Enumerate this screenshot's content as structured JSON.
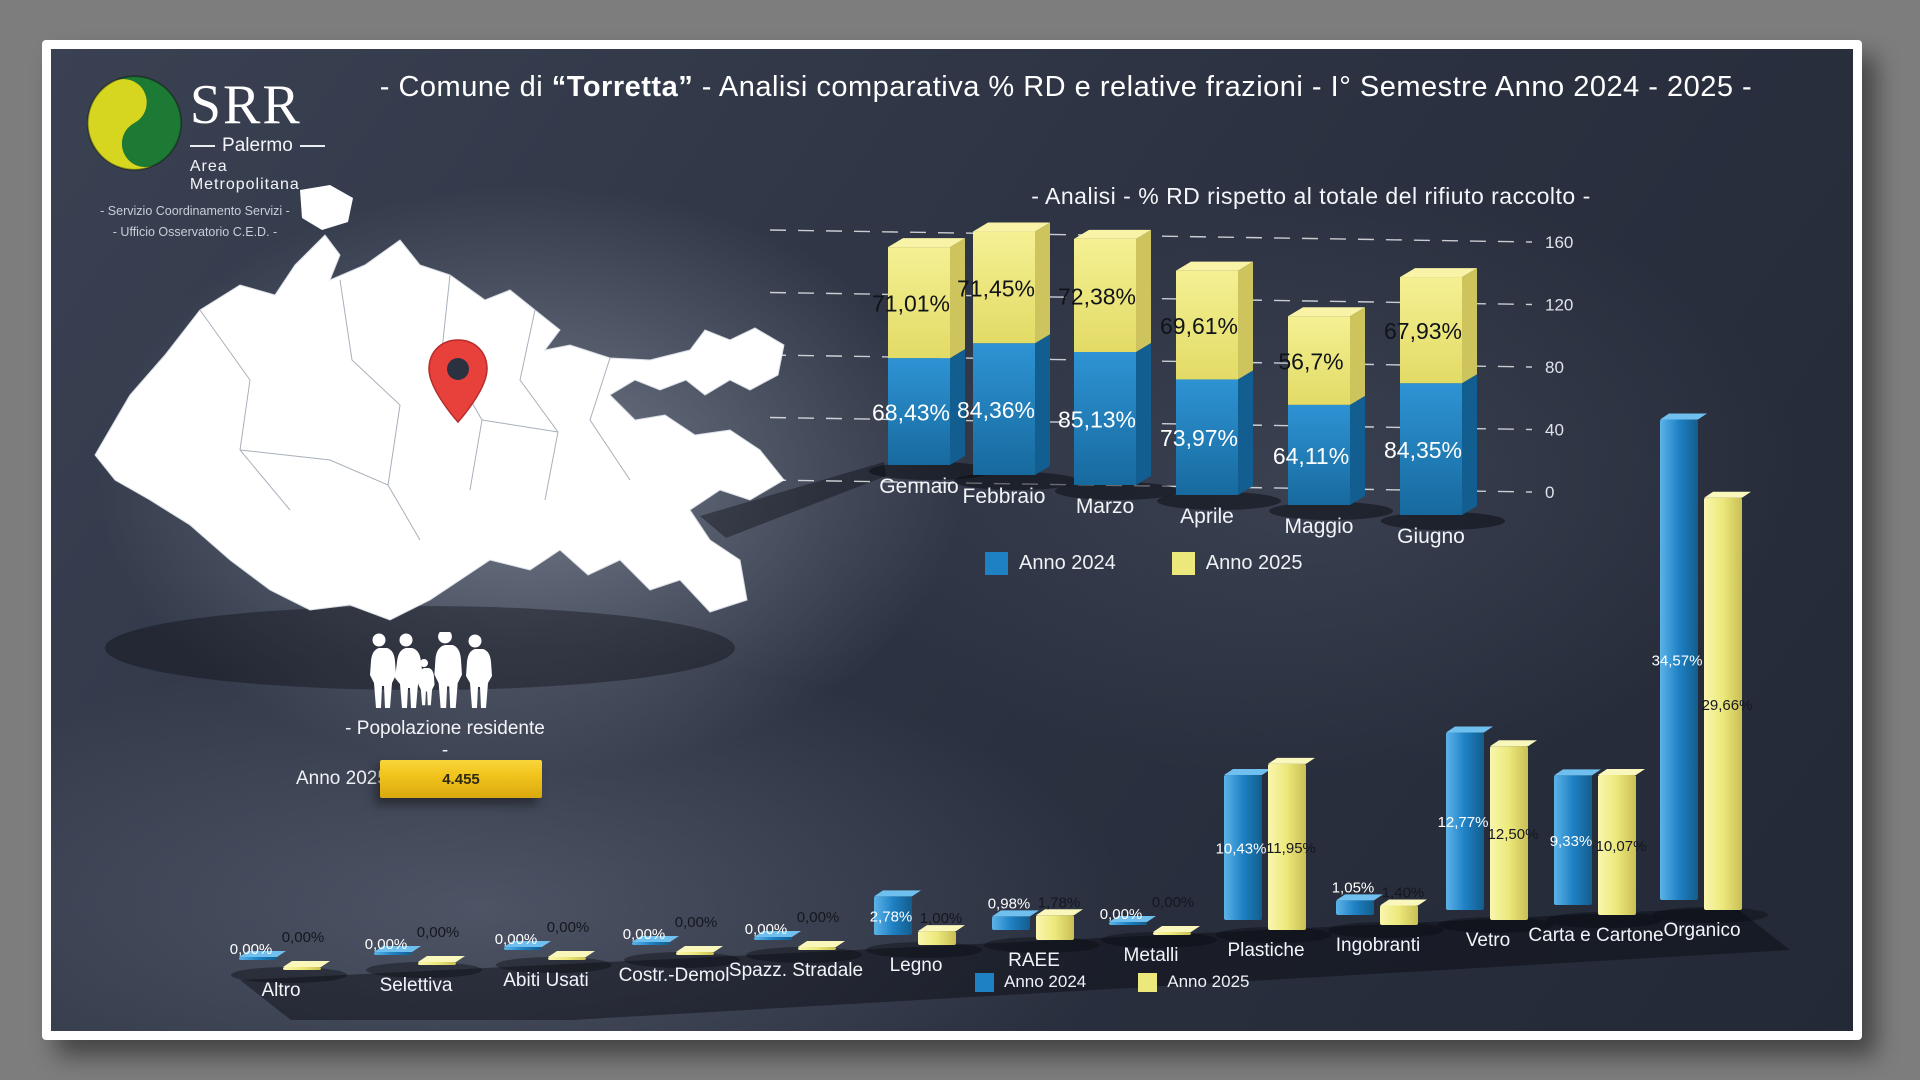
{
  "header": {
    "logo_text": "SRR",
    "logo_sub1": "Palermo",
    "logo_sub2": "Area Metropolitana",
    "dept_line1": "- Servizio Coordinamento Servizi -",
    "dept_line2": "- Ufficio Osservatorio C.E.D. -",
    "title_prefix": "- Comune di ",
    "title_bold": "“Torretta”",
    "title_suffix": " - Analisi comparativa % RD e relative frazioni - I° Semestre Anno 2024 - 2025 -"
  },
  "colors": {
    "anno2024_blue": "#1E81C4",
    "anno2025_yellow": "#ECE87B",
    "population_gold": "#F2C41D",
    "pin_red": "#E8413C",
    "panel_navy": "#2B3140",
    "frame_white": "#FFFFFF"
  },
  "population": {
    "caption": "- Popolazione residente -",
    "year_label": "Anno 2025",
    "value": "4.455"
  },
  "chart_data": [
    {
      "type": "bar",
      "stacked": true,
      "title": "- Analisi - % RD rispetto al totale del rifiuto raccolto -",
      "categories": [
        "Gennaio",
        "Febbraio",
        "Marzo",
        "Aprile",
        "Maggio",
        "Giugno"
      ],
      "series": [
        {
          "name": "Anno 2024",
          "values": [
            68.43,
            84.36,
            85.13,
            73.97,
            64.11,
            84.35
          ]
        },
        {
          "name": "Anno 2025",
          "values": [
            71.01,
            71.45,
            72.38,
            69.61,
            56.7,
            67.93
          ]
        }
      ],
      "labels_2024": [
        "68,43%",
        "84,36%",
        "85,13%",
        "73,97%",
        "64,11%",
        "84,35%"
      ],
      "labels_2025": [
        "71,01%",
        "71,45%",
        "72,38%",
        "69,61%",
        "56,7%",
        "67,93%"
      ],
      "ylim": [
        0,
        160
      ],
      "yticks": [
        "0",
        "40",
        "80",
        "120",
        "160"
      ],
      "axis_side": "right",
      "grid": "dashed",
      "legend": [
        "Anno 2024",
        "Anno 2025"
      ]
    },
    {
      "type": "bar",
      "stacked": false,
      "categories": [
        "Altro",
        "Selettiva",
        "Abiti Usati",
        "Costr.-Demol",
        "Spazz. Stradale",
        "Legno",
        "RAEE",
        "Metalli",
        "Plastiche",
        "Ingobranti",
        "Vetro",
        "Carta e Cartone",
        "Organico"
      ],
      "series": [
        {
          "name": "Anno 2024",
          "values": [
            0,
            0,
            0,
            0,
            0,
            2.78,
            0.98,
            0,
            10.43,
            1.05,
            12.77,
            9.33,
            34.57
          ]
        },
        {
          "name": "Anno 2025",
          "values": [
            0,
            0,
            0,
            0,
            0,
            1.0,
            1.78,
            0,
            11.95,
            1.4,
            12.5,
            10.07,
            29.66
          ]
        }
      ],
      "labels_2024": [
        "0,00%",
        "0,00%",
        "0,00%",
        "0,00%",
        "0,00%",
        "2,78%",
        "0,98%",
        "0,00%",
        "10,43%",
        "1,05%",
        "12,77%",
        "9,33%",
        "34,57%"
      ],
      "labels_2025": [
        "0,00%",
        "0,00%",
        "0,00%",
        "0,00%",
        "0,00%",
        "1,00%",
        "1,78%",
        "0,00%",
        "11,95%",
        "1,40%",
        "12,50%",
        "10,07%",
        "29,66%"
      ],
      "legend": [
        "Anno 2024",
        "Anno 2025"
      ]
    }
  ]
}
